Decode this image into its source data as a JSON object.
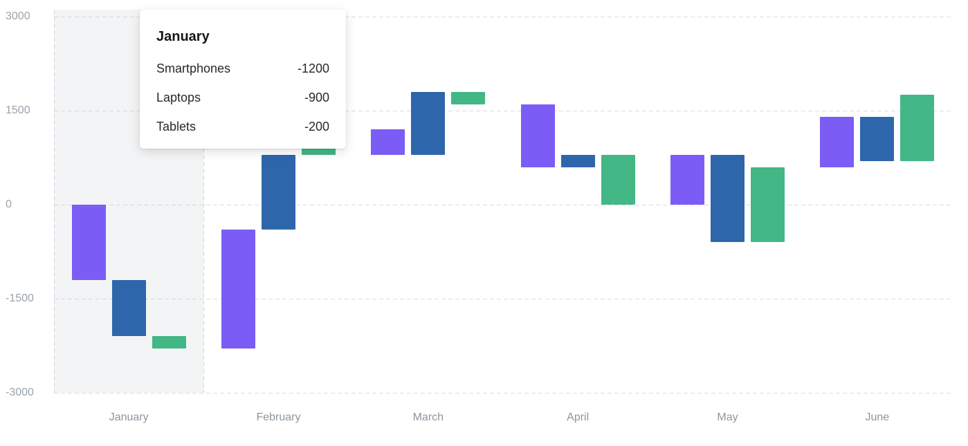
{
  "chart_data": {
    "type": "bar",
    "variant": "waterfall-range-bars",
    "title": "",
    "categories": [
      "January",
      "February",
      "March",
      "April",
      "May",
      "June"
    ],
    "series": [
      {
        "name": "Smartphones",
        "color": "#7b5cf5",
        "ranges_low_high": [
          [
            -1200,
            0
          ],
          [
            -2300,
            -400
          ],
          [
            800,
            1200
          ],
          [
            600,
            1600
          ],
          [
            0,
            800
          ],
          [
            600,
            1400
          ]
        ]
      },
      {
        "name": "Laptops",
        "color": "#2e66ab",
        "ranges_low_high": [
          [
            -2100,
            -1200
          ],
          [
            -400,
            800
          ],
          [
            800,
            1800
          ],
          [
            600,
            800
          ],
          [
            -600,
            800
          ],
          [
            700,
            1400
          ]
        ]
      },
      {
        "name": "Tablets",
        "color": "#43b786",
        "ranges_low_high": [
          [
            -2300,
            -2100
          ],
          [
            800,
            900
          ],
          [
            1600,
            1800
          ],
          [
            0,
            800
          ],
          [
            -600,
            600
          ],
          [
            700,
            1750
          ]
        ]
      }
    ],
    "y_ticks": [
      3000,
      1500,
      0,
      -1500,
      -3000
    ],
    "y_tick_labels": [
      "3000",
      "1500",
      "0",
      "-1500",
      "-3000"
    ],
    "ylim": [
      -3000,
      3000
    ],
    "gridlines": "dashed-horizontal",
    "legend": "none",
    "highlighted_category": "January"
  },
  "tooltip": {
    "title": "January",
    "rows": [
      {
        "label": "Smartphones",
        "value": "-1200"
      },
      {
        "label": "Laptops",
        "value": "-900"
      },
      {
        "label": "Tablets",
        "value": "-200"
      }
    ]
  },
  "colors": {
    "background": "#ffffff",
    "grid": "#dcdde2",
    "axis_text": "#9aa3ab",
    "highlight_band": "rgba(163,170,181,0.13)",
    "smartphones": "#7b5cf5",
    "laptops": "#2e66ab",
    "tablets": "#43b786"
  }
}
